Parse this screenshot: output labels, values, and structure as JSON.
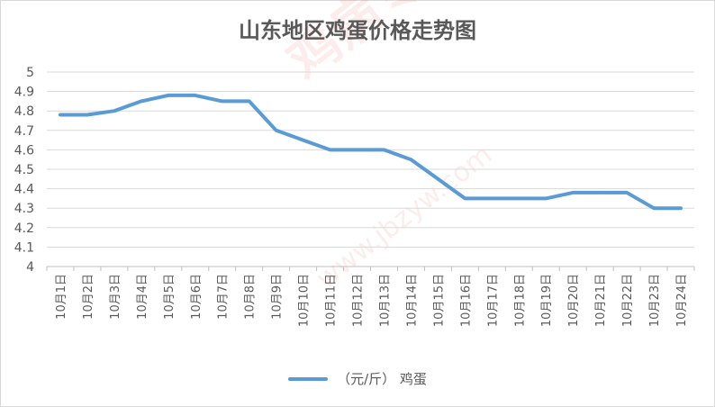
{
  "watermark": "鸡病专业网",
  "watermark_url": "www.jbzyw.com",
  "chart_data": {
    "type": "line",
    "title": "山东地区鸡蛋价格走势图",
    "xlabel": "",
    "ylabel": "",
    "categories": [
      "10月1日",
      "10月2日",
      "10月3日",
      "10月4日",
      "10月5日",
      "10月6日",
      "10月7日",
      "10月8日",
      "10月9日",
      "10月10日",
      "10月11日",
      "10月12日",
      "10月13日",
      "10月14日",
      "10月15日",
      "10月16日",
      "10月17日",
      "10月18日",
      "10月19日",
      "10月20日",
      "10月21日",
      "10月22日",
      "10月23日",
      "10月24日"
    ],
    "series": [
      {
        "name": "（元/斤）  鸡蛋",
        "color": "#5b9bd5",
        "values": [
          4.78,
          4.78,
          4.8,
          4.85,
          4.88,
          4.88,
          4.85,
          4.85,
          4.7,
          4.65,
          4.6,
          4.6,
          4.6,
          4.55,
          4.45,
          4.35,
          4.35,
          4.35,
          4.35,
          4.38,
          4.38,
          4.38,
          4.3,
          4.3
        ]
      }
    ],
    "ylim": [
      4,
      5
    ],
    "yticks": [
      "4",
      "4.1",
      "4.2",
      "4.3",
      "4.4",
      "4.5",
      "4.6",
      "4.7",
      "4.8",
      "4.9",
      "5"
    ],
    "grid": true,
    "legend_position": "bottom"
  }
}
